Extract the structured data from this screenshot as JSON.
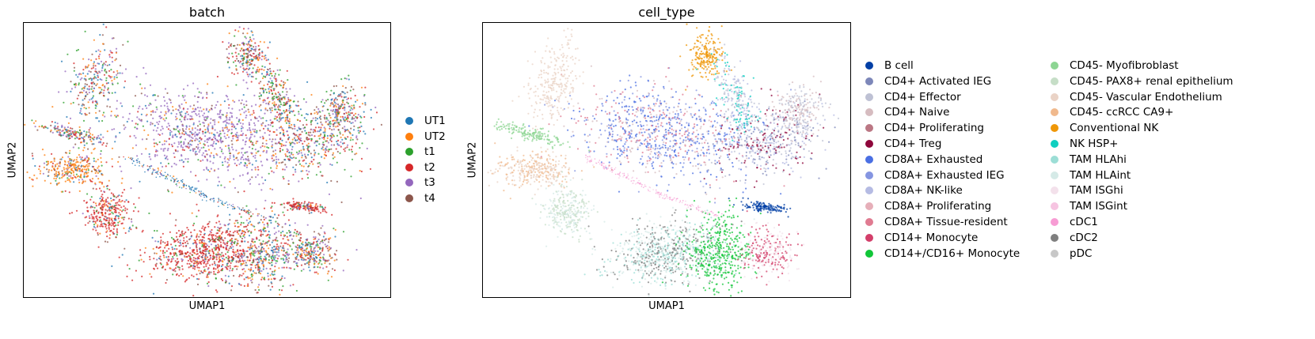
{
  "chart_data": [
    {
      "type": "scatter",
      "title": "batch",
      "xlabel": "UMAP1",
      "ylabel": "UMAP2",
      "grid": false,
      "legend_placement": "right",
      "series": [
        {
          "name": "UT1",
          "color": "#1f77b4"
        },
        {
          "name": "UT2",
          "color": "#ff7f0e"
        },
        {
          "name": "t1",
          "color": "#2ca02c"
        },
        {
          "name": "t2",
          "color": "#d62728"
        },
        {
          "name": "t3",
          "color": "#9467bd"
        },
        {
          "name": "t4",
          "color": "#8c564b"
        }
      ]
    },
    {
      "type": "scatter",
      "title": "cell_type",
      "xlabel": "UMAP1",
      "ylabel": "UMAP2",
      "grid": false,
      "legend_placement": "right",
      "series": [
        {
          "name": "B cell",
          "color": "#023fa5"
        },
        {
          "name": "CD4+ Activated IEG",
          "color": "#7d87b9"
        },
        {
          "name": "CD4+ Effector",
          "color": "#bec1d4"
        },
        {
          "name": "CD4+ Naive",
          "color": "#d6bcc0"
        },
        {
          "name": "CD4+ Proliferating",
          "color": "#bb7784"
        },
        {
          "name": "CD4+ Treg",
          "color": "#8e063b"
        },
        {
          "name": "CD8A+ Exhausted",
          "color": "#4a6fe3"
        },
        {
          "name": "CD8A+ Exhausted IEG",
          "color": "#8595e1"
        },
        {
          "name": "CD8A+ NK-like",
          "color": "#b5bbe3"
        },
        {
          "name": "CD8A+ Proliferating",
          "color": "#e6afb9"
        },
        {
          "name": "CD8A+ Tissue-resident",
          "color": "#e07b91"
        },
        {
          "name": "CD14+ Monocyte",
          "color": "#d33f6a"
        },
        {
          "name": "CD14+/CD16+ Monocyte",
          "color": "#11c638"
        },
        {
          "name": "CD45- Myofibroblast",
          "color": "#8dd593"
        },
        {
          "name": "CD45- PAX8+ renal epithelium",
          "color": "#c6dec7"
        },
        {
          "name": "CD45- Vascular Endothelium",
          "color": "#ead3c6"
        },
        {
          "name": "CD45- ccRCC CA9+",
          "color": "#f0b98d"
        },
        {
          "name": "Conventional NK",
          "color": "#ef9708"
        },
        {
          "name": "NK HSP+",
          "color": "#0fcfc0"
        },
        {
          "name": "TAM HLAhi",
          "color": "#9cded6"
        },
        {
          "name": "TAM HLAint",
          "color": "#d5eae7"
        },
        {
          "name": "TAM ISGhi",
          "color": "#f3e1eb"
        },
        {
          "name": "TAM ISGint",
          "color": "#f6c4e1"
        },
        {
          "name": "cDC1",
          "color": "#f79cd4"
        },
        {
          "name": "cDC2",
          "color": "#7f7f7f"
        },
        {
          "name": "pDC",
          "color": "#c7c7c7"
        }
      ]
    }
  ]
}
